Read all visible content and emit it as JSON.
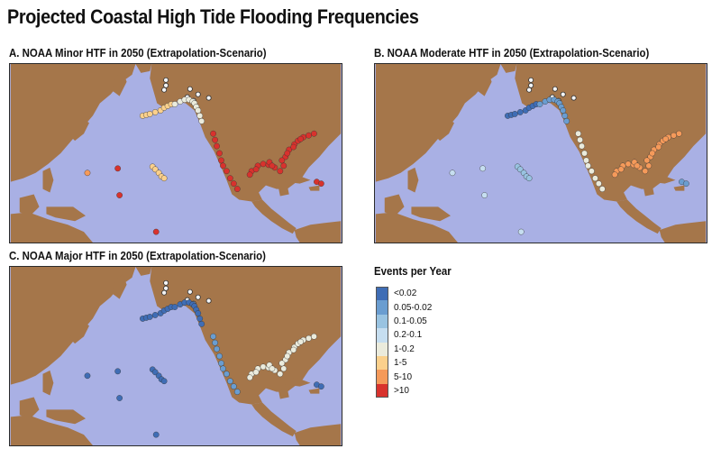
{
  "title": "Projected Coastal High Tide Flooding Frequencies",
  "colors": {
    "ocean": "#a9b0e4",
    "land": "#a5764a",
    "point_outline": "#333333"
  },
  "panels": [
    {
      "id": "A",
      "title": "A. NOAA Minor HTF in 2050 (Extrapolation-Scenario)"
    },
    {
      "id": "B",
      "title": "B. NOAA Moderate HTF in 2050 (Extrapolation-Scenario)"
    },
    {
      "id": "C",
      "title": "C. NOAA Major HTF in 2050 (Extrapolation-Scenario)"
    }
  ],
  "legend": {
    "title": "Events per Year",
    "classes": [
      {
        "label": "<0.02",
        "color": "#3f6db5"
      },
      {
        "label": "0.05-0.02",
        "color": "#6a9dd0"
      },
      {
        "label": "0.1-0.05",
        "color": "#99c3e1"
      },
      {
        "label": "0.2-0.1",
        "color": "#c6def0"
      },
      {
        "label": "1-0.2",
        "color": "#ebebdc"
      },
      {
        "label": "1-5",
        "color": "#fbd08c"
      },
      {
        "label": "5-10",
        "color": "#f59a5a"
      },
      {
        "label": ">10",
        "color": "#d8322d"
      }
    ]
  },
  "station_classes": {
    "A": {
      "alaska_north": "none",
      "aleutians": 5,
      "alaska_south": 4,
      "west_coast": 7,
      "gulf_coast": 7,
      "east_coast": 7,
      "caribbean": 7,
      "hawaii": 5,
      "guam": 6,
      "pacific_islands": 7
    },
    "B": {
      "alaska_north": "none",
      "aleutians": 0,
      "alaska_south": 1,
      "west_coast": 4,
      "gulf_coast": 6,
      "east_coast": 6,
      "caribbean": 1,
      "hawaii": 2,
      "guam": 3,
      "pacific_islands": 3
    },
    "C": {
      "alaska_north": "none",
      "aleutians": 0,
      "alaska_south": 0,
      "west_coast": 1,
      "gulf_coast": 4,
      "east_coast": 4,
      "caribbean": 0,
      "hawaii": 0,
      "guam": 0,
      "pacific_islands": 0
    }
  }
}
